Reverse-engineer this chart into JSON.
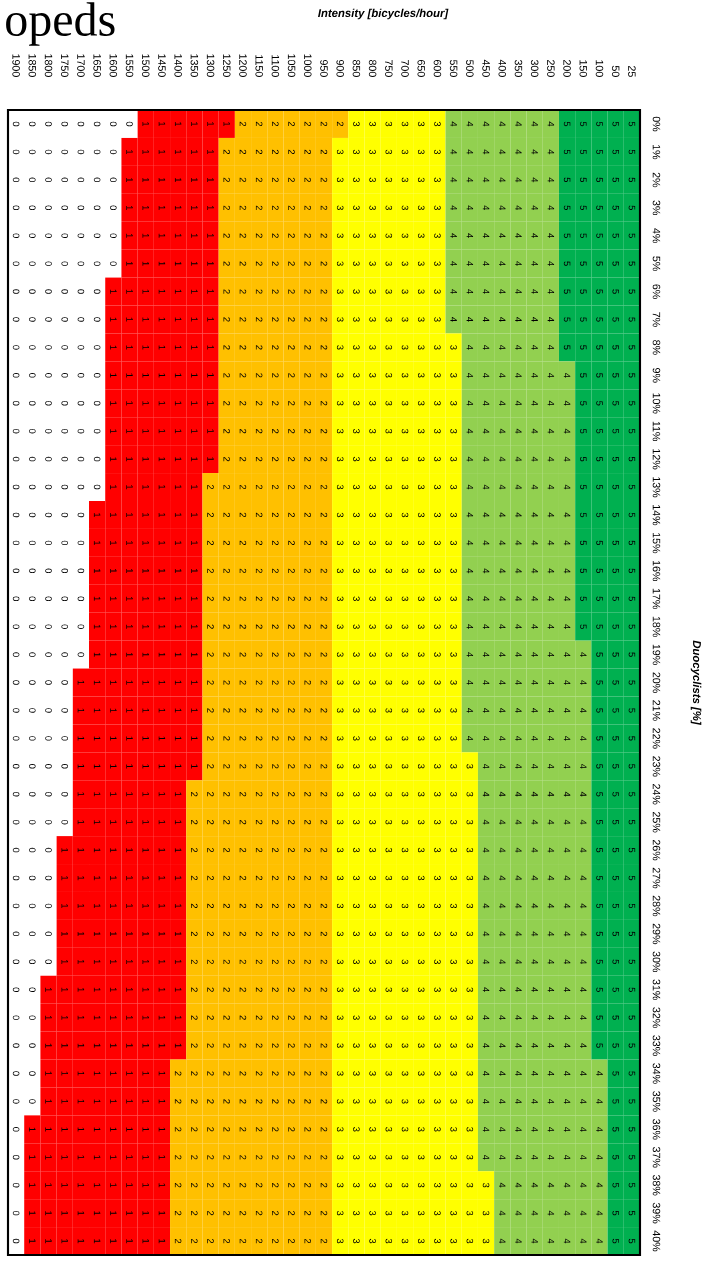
{
  "chart_data": {
    "type": "heatmap",
    "title": "opeds",
    "xlabel": "Intensity [bicycles/hour]",
    "ylabel": "Duocyclists [%]",
    "categories": [
      "1900",
      "1850",
      "1800",
      "1750",
      "1700",
      "1650",
      "1600",
      "1550",
      "1500",
      "1450",
      "1400",
      "1350",
      "1300",
      "1250",
      "1200",
      "1150",
      "1100",
      "1050",
      "1000",
      "950",
      "900",
      "850",
      "800",
      "750",
      "700",
      "650",
      "600",
      "550",
      "500",
      "450",
      "400",
      "350",
      "300",
      "250",
      "200",
      "150",
      "100",
      "50",
      "25"
    ],
    "y_categories": [
      "0%",
      "1%",
      "2%",
      "3%",
      "4%",
      "5%",
      "6%",
      "7%",
      "8%",
      "9%",
      "10%",
      "11%",
      "12%",
      "13%",
      "14%",
      "15%",
      "16%",
      "17%",
      "18%",
      "19%",
      "20%",
      "21%",
      "22%",
      "23%",
      "24%",
      "25%",
      "26%",
      "27%",
      "28%",
      "29%",
      "30%",
      "31%",
      "32%",
      "33%",
      "34%",
      "35%",
      "36%",
      "37%",
      "38%",
      "39%",
      "40%"
    ],
    "colors": [
      "#ffffff",
      "#ff0000",
      "#ffc000",
      "#ffff00",
      "#92d050",
      "#00b050"
    ],
    "data_labels": true,
    "cells": [
      [
        0,
        0,
        0,
        0,
        0,
        0,
        0,
        0,
        1,
        1,
        1,
        1,
        1,
        1,
        2,
        2,
        2,
        2,
        2,
        2,
        2,
        3,
        3,
        3,
        3,
        3,
        3,
        4,
        4,
        4,
        4,
        4,
        4,
        4,
        5,
        5,
        5,
        5,
        5
      ],
      [
        0,
        0,
        0,
        0,
        0,
        0,
        0,
        1,
        1,
        1,
        1,
        1,
        1,
        2,
        2,
        2,
        2,
        2,
        2,
        2,
        3,
        3,
        3,
        3,
        3,
        3,
        3,
        4,
        4,
        4,
        4,
        4,
        4,
        4,
        5,
        5,
        5,
        5,
        5
      ],
      [
        0,
        0,
        0,
        0,
        0,
        0,
        0,
        1,
        1,
        1,
        1,
        1,
        1,
        2,
        2,
        2,
        2,
        2,
        2,
        2,
        3,
        3,
        3,
        3,
        3,
        3,
        3,
        4,
        4,
        4,
        4,
        4,
        4,
        4,
        5,
        5,
        5,
        5,
        5
      ],
      [
        0,
        0,
        0,
        0,
        0,
        0,
        0,
        1,
        1,
        1,
        1,
        1,
        1,
        2,
        2,
        2,
        2,
        2,
        2,
        2,
        3,
        3,
        3,
        3,
        3,
        3,
        3,
        4,
        4,
        4,
        4,
        4,
        4,
        4,
        5,
        5,
        5,
        5,
        5
      ],
      [
        0,
        0,
        0,
        0,
        0,
        0,
        0,
        1,
        1,
        1,
        1,
        1,
        1,
        2,
        2,
        2,
        2,
        2,
        2,
        2,
        3,
        3,
        3,
        3,
        3,
        3,
        3,
        4,
        4,
        4,
        4,
        4,
        4,
        4,
        5,
        5,
        5,
        5,
        5
      ],
      [
        0,
        0,
        0,
        0,
        0,
        0,
        0,
        1,
        1,
        1,
        1,
        1,
        1,
        2,
        2,
        2,
        2,
        2,
        2,
        2,
        3,
        3,
        3,
        3,
        3,
        3,
        3,
        4,
        4,
        4,
        4,
        4,
        4,
        4,
        5,
        5,
        5,
        5,
        5
      ],
      [
        0,
        0,
        0,
        0,
        0,
        0,
        1,
        1,
        1,
        1,
        1,
        1,
        1,
        2,
        2,
        2,
        2,
        2,
        2,
        2,
        3,
        3,
        3,
        3,
        3,
        3,
        3,
        4,
        4,
        4,
        4,
        4,
        4,
        4,
        5,
        5,
        5,
        5,
        5
      ],
      [
        0,
        0,
        0,
        0,
        0,
        0,
        1,
        1,
        1,
        1,
        1,
        1,
        1,
        2,
        2,
        2,
        2,
        2,
        2,
        2,
        3,
        3,
        3,
        3,
        3,
        3,
        3,
        4,
        4,
        4,
        4,
        4,
        4,
        4,
        5,
        5,
        5,
        5,
        5
      ],
      [
        0,
        0,
        0,
        0,
        0,
        0,
        1,
        1,
        1,
        1,
        1,
        1,
        1,
        2,
        2,
        2,
        2,
        2,
        2,
        2,
        3,
        3,
        3,
        3,
        3,
        3,
        3,
        3,
        4,
        4,
        4,
        4,
        4,
        4,
        5,
        5,
        5,
        5,
        5
      ],
      [
        0,
        0,
        0,
        0,
        0,
        0,
        1,
        1,
        1,
        1,
        1,
        1,
        1,
        2,
        2,
        2,
        2,
        2,
        2,
        2,
        3,
        3,
        3,
        3,
        3,
        3,
        3,
        3,
        4,
        4,
        4,
        4,
        4,
        4,
        4,
        5,
        5,
        5,
        5
      ],
      [
        0,
        0,
        0,
        0,
        0,
        0,
        1,
        1,
        1,
        1,
        1,
        1,
        1,
        2,
        2,
        2,
        2,
        2,
        2,
        2,
        3,
        3,
        3,
        3,
        3,
        3,
        3,
        3,
        4,
        4,
        4,
        4,
        4,
        4,
        4,
        5,
        5,
        5,
        5
      ],
      [
        0,
        0,
        0,
        0,
        0,
        0,
        1,
        1,
        1,
        1,
        1,
        1,
        1,
        2,
        2,
        2,
        2,
        2,
        2,
        2,
        3,
        3,
        3,
        3,
        3,
        3,
        3,
        3,
        4,
        4,
        4,
        4,
        4,
        4,
        4,
        5,
        5,
        5,
        5
      ],
      [
        0,
        0,
        0,
        0,
        0,
        0,
        1,
        1,
        1,
        1,
        1,
        1,
        1,
        2,
        2,
        2,
        2,
        2,
        2,
        2,
        3,
        3,
        3,
        3,
        3,
        3,
        3,
        3,
        4,
        4,
        4,
        4,
        4,
        4,
        4,
        5,
        5,
        5,
        5
      ],
      [
        0,
        0,
        0,
        0,
        0,
        0,
        1,
        1,
        1,
        1,
        1,
        1,
        2,
        2,
        2,
        2,
        2,
        2,
        2,
        2,
        3,
        3,
        3,
        3,
        3,
        3,
        3,
        3,
        4,
        4,
        4,
        4,
        4,
        4,
        4,
        5,
        5,
        5,
        5
      ],
      [
        0,
        0,
        0,
        0,
        0,
        1,
        1,
        1,
        1,
        1,
        1,
        1,
        2,
        2,
        2,
        2,
        2,
        2,
        2,
        2,
        3,
        3,
        3,
        3,
        3,
        3,
        3,
        3,
        4,
        4,
        4,
        4,
        4,
        4,
        4,
        5,
        5,
        5,
        5
      ],
      [
        0,
        0,
        0,
        0,
        0,
        1,
        1,
        1,
        1,
        1,
        1,
        1,
        2,
        2,
        2,
        2,
        2,
        2,
        2,
        2,
        3,
        3,
        3,
        3,
        3,
        3,
        3,
        3,
        4,
        4,
        4,
        4,
        4,
        4,
        4,
        5,
        5,
        5,
        5
      ],
      [
        0,
        0,
        0,
        0,
        0,
        1,
        1,
        1,
        1,
        1,
        1,
        1,
        2,
        2,
        2,
        2,
        2,
        2,
        2,
        2,
        3,
        3,
        3,
        3,
        3,
        3,
        3,
        3,
        4,
        4,
        4,
        4,
        4,
        4,
        4,
        5,
        5,
        5,
        5
      ],
      [
        0,
        0,
        0,
        0,
        0,
        1,
        1,
        1,
        1,
        1,
        1,
        1,
        2,
        2,
        2,
        2,
        2,
        2,
        2,
        2,
        3,
        3,
        3,
        3,
        3,
        3,
        3,
        3,
        4,
        4,
        4,
        4,
        4,
        4,
        4,
        5,
        5,
        5,
        5
      ],
      [
        0,
        0,
        0,
        0,
        0,
        1,
        1,
        1,
        1,
        1,
        1,
        1,
        2,
        2,
        2,
        2,
        2,
        2,
        2,
        2,
        3,
        3,
        3,
        3,
        3,
        3,
        3,
        3,
        4,
        4,
        4,
        4,
        4,
        4,
        4,
        5,
        5,
        5,
        5
      ],
      [
        0,
        0,
        0,
        0,
        0,
        1,
        1,
        1,
        1,
        1,
        1,
        1,
        2,
        2,
        2,
        2,
        2,
        2,
        2,
        2,
        3,
        3,
        3,
        3,
        3,
        3,
        3,
        3,
        4,
        4,
        4,
        4,
        4,
        4,
        4,
        4,
        5,
        5,
        5
      ],
      [
        0,
        0,
        0,
        0,
        1,
        1,
        1,
        1,
        1,
        1,
        1,
        1,
        2,
        2,
        2,
        2,
        2,
        2,
        2,
        2,
        3,
        3,
        3,
        3,
        3,
        3,
        3,
        3,
        4,
        4,
        4,
        4,
        4,
        4,
        4,
        4,
        5,
        5,
        5
      ],
      [
        0,
        0,
        0,
        0,
        1,
        1,
        1,
        1,
        1,
        1,
        1,
        1,
        2,
        2,
        2,
        2,
        2,
        2,
        2,
        2,
        3,
        3,
        3,
        3,
        3,
        3,
        3,
        3,
        4,
        4,
        4,
        4,
        4,
        4,
        4,
        4,
        5,
        5,
        5
      ],
      [
        0,
        0,
        0,
        0,
        1,
        1,
        1,
        1,
        1,
        1,
        1,
        1,
        2,
        2,
        2,
        2,
        2,
        2,
        2,
        2,
        3,
        3,
        3,
        3,
        3,
        3,
        3,
        3,
        4,
        4,
        4,
        4,
        4,
        4,
        4,
        4,
        5,
        5,
        5
      ],
      [
        0,
        0,
        0,
        0,
        1,
        1,
        1,
        1,
        1,
        1,
        1,
        1,
        2,
        2,
        2,
        2,
        2,
        2,
        2,
        2,
        3,
        3,
        3,
        3,
        3,
        3,
        3,
        3,
        3,
        4,
        4,
        4,
        4,
        4,
        4,
        4,
        5,
        5,
        5
      ],
      [
        0,
        0,
        0,
        0,
        1,
        1,
        1,
        1,
        1,
        1,
        1,
        2,
        2,
        2,
        2,
        2,
        2,
        2,
        2,
        2,
        3,
        3,
        3,
        3,
        3,
        3,
        3,
        3,
        3,
        4,
        4,
        4,
        4,
        4,
        4,
        4,
        5,
        5,
        5
      ],
      [
        0,
        0,
        0,
        0,
        1,
        1,
        1,
        1,
        1,
        1,
        1,
        2,
        2,
        2,
        2,
        2,
        2,
        2,
        2,
        2,
        3,
        3,
        3,
        3,
        3,
        3,
        3,
        3,
        3,
        4,
        4,
        4,
        4,
        4,
        4,
        4,
        5,
        5,
        5
      ],
      [
        0,
        0,
        0,
        1,
        1,
        1,
        1,
        1,
        1,
        1,
        1,
        2,
        2,
        2,
        2,
        2,
        2,
        2,
        2,
        2,
        3,
        3,
        3,
        3,
        3,
        3,
        3,
        3,
        3,
        4,
        4,
        4,
        4,
        4,
        4,
        4,
        5,
        5,
        5
      ],
      [
        0,
        0,
        0,
        1,
        1,
        1,
        1,
        1,
        1,
        1,
        1,
        2,
        2,
        2,
        2,
        2,
        2,
        2,
        2,
        2,
        3,
        3,
        3,
        3,
        3,
        3,
        3,
        3,
        3,
        4,
        4,
        4,
        4,
        4,
        4,
        4,
        5,
        5,
        5
      ],
      [
        0,
        0,
        0,
        1,
        1,
        1,
        1,
        1,
        1,
        1,
        1,
        2,
        2,
        2,
        2,
        2,
        2,
        2,
        2,
        2,
        3,
        3,
        3,
        3,
        3,
        3,
        3,
        3,
        3,
        4,
        4,
        4,
        4,
        4,
        4,
        4,
        5,
        5,
        5
      ],
      [
        0,
        0,
        0,
        1,
        1,
        1,
        1,
        1,
        1,
        1,
        1,
        2,
        2,
        2,
        2,
        2,
        2,
        2,
        2,
        2,
        3,
        3,
        3,
        3,
        3,
        3,
        3,
        3,
        3,
        4,
        4,
        4,
        4,
        4,
        4,
        4,
        5,
        5,
        5
      ],
      [
        0,
        0,
        0,
        1,
        1,
        1,
        1,
        1,
        1,
        1,
        1,
        2,
        2,
        2,
        2,
        2,
        2,
        2,
        2,
        2,
        3,
        3,
        3,
        3,
        3,
        3,
        3,
        3,
        3,
        4,
        4,
        4,
        4,
        4,
        4,
        4,
        5,
        5,
        5
      ],
      [
        0,
        0,
        1,
        1,
        1,
        1,
        1,
        1,
        1,
        1,
        1,
        2,
        2,
        2,
        2,
        2,
        2,
        2,
        2,
        2,
        3,
        3,
        3,
        3,
        3,
        3,
        3,
        3,
        3,
        4,
        4,
        4,
        4,
        4,
        4,
        4,
        5,
        5,
        5
      ],
      [
        0,
        0,
        1,
        1,
        1,
        1,
        1,
        1,
        1,
        1,
        1,
        2,
        2,
        2,
        2,
        2,
        2,
        2,
        2,
        2,
        3,
        3,
        3,
        3,
        3,
        3,
        3,
        3,
        3,
        4,
        4,
        4,
        4,
        4,
        4,
        4,
        5,
        5,
        5
      ],
      [
        0,
        0,
        1,
        1,
        1,
        1,
        1,
        1,
        1,
        1,
        1,
        2,
        2,
        2,
        2,
        2,
        2,
        2,
        2,
        2,
        3,
        3,
        3,
        3,
        3,
        3,
        3,
        3,
        3,
        4,
        4,
        4,
        4,
        4,
        4,
        4,
        5,
        5,
        5
      ],
      [
        0,
        0,
        1,
        1,
        1,
        1,
        1,
        1,
        1,
        1,
        2,
        2,
        2,
        2,
        2,
        2,
        2,
        2,
        2,
        2,
        3,
        3,
        3,
        3,
        3,
        3,
        3,
        3,
        3,
        4,
        4,
        4,
        4,
        4,
        4,
        4,
        4,
        5,
        5
      ],
      [
        0,
        0,
        1,
        1,
        1,
        1,
        1,
        1,
        1,
        1,
        2,
        2,
        2,
        2,
        2,
        2,
        2,
        2,
        2,
        2,
        3,
        3,
        3,
        3,
        3,
        3,
        3,
        3,
        3,
        4,
        4,
        4,
        4,
        4,
        4,
        4,
        4,
        5,
        5
      ],
      [
        0,
        1,
        1,
        1,
        1,
        1,
        1,
        1,
        1,
        1,
        2,
        2,
        2,
        2,
        2,
        2,
        2,
        2,
        2,
        2,
        3,
        3,
        3,
        3,
        3,
        3,
        3,
        3,
        3,
        4,
        4,
        4,
        4,
        4,
        4,
        4,
        4,
        5,
        5
      ],
      [
        0,
        1,
        1,
        1,
        1,
        1,
        1,
        1,
        1,
        1,
        2,
        2,
        2,
        2,
        2,
        2,
        2,
        2,
        2,
        2,
        3,
        3,
        3,
        3,
        3,
        3,
        3,
        3,
        3,
        4,
        4,
        4,
        4,
        4,
        4,
        4,
        4,
        5,
        5
      ],
      [
        0,
        1,
        1,
        1,
        1,
        1,
        1,
        1,
        1,
        1,
        2,
        2,
        2,
        2,
        2,
        2,
        2,
        2,
        2,
        2,
        3,
        3,
        3,
        3,
        3,
        3,
        3,
        3,
        3,
        3,
        4,
        4,
        4,
        4,
        4,
        4,
        4,
        5,
        5
      ],
      [
        0,
        1,
        1,
        1,
        1,
        1,
        1,
        1,
        1,
        1,
        2,
        2,
        2,
        2,
        2,
        2,
        2,
        2,
        2,
        2,
        3,
        3,
        3,
        3,
        3,
        3,
        3,
        3,
        3,
        3,
        4,
        4,
        4,
        4,
        4,
        4,
        4,
        5,
        5
      ],
      [
        0,
        1,
        1,
        1,
        1,
        1,
        1,
        1,
        1,
        1,
        2,
        2,
        2,
        2,
        2,
        2,
        2,
        2,
        2,
        2,
        3,
        3,
        3,
        3,
        3,
        3,
        3,
        3,
        3,
        3,
        4,
        4,
        4,
        4,
        4,
        4,
        4,
        5,
        5
      ]
    ]
  }
}
